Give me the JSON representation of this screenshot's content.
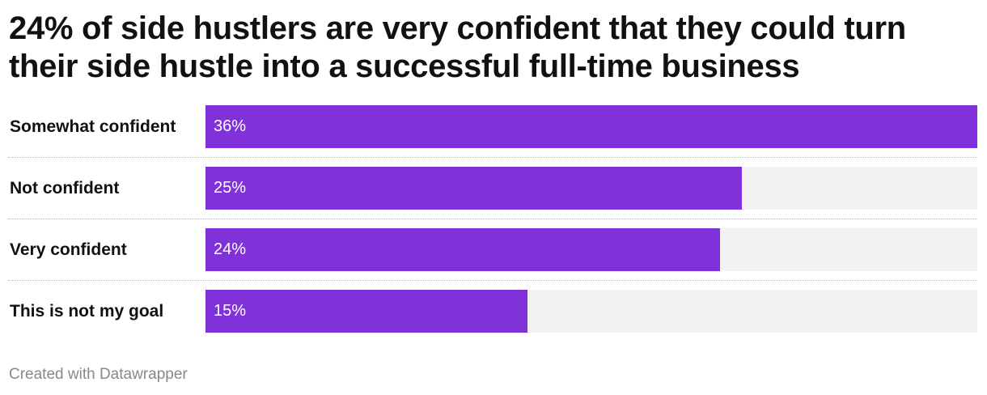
{
  "title": "24% of side hustlers are very confident that they could turn their side hustle into a successful full-time business",
  "credit": "Created with Datawrapper",
  "colors": {
    "bar": "#8131d9",
    "track": "#f2f2f2",
    "value_text": "#ffffff"
  },
  "chart_data": {
    "type": "bar",
    "orientation": "horizontal",
    "categories": [
      "Somewhat confident",
      "Not confident",
      "Very confident",
      "This is not my goal"
    ],
    "values": [
      36,
      25,
      24,
      15
    ],
    "value_labels": [
      "36%",
      "25%",
      "24%",
      "15%"
    ],
    "unit": "%",
    "xlim": [
      0,
      36
    ],
    "grid": false,
    "legend": "none"
  }
}
